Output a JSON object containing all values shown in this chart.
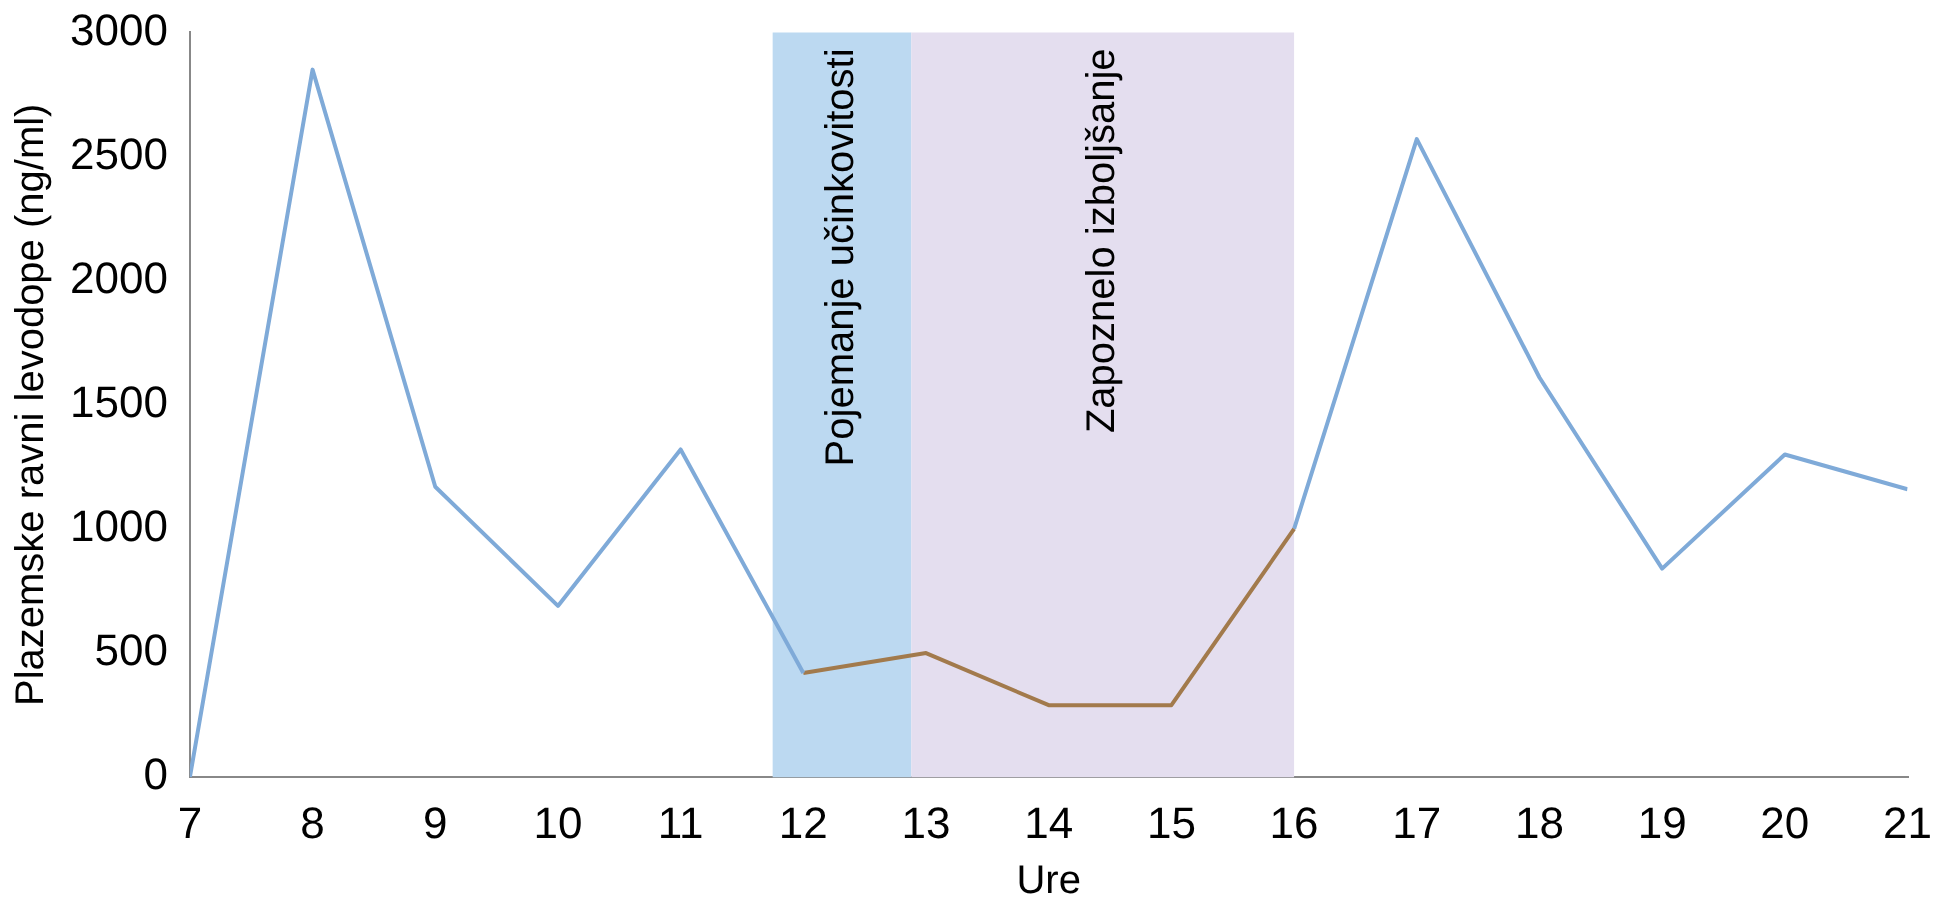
{
  "chart_data": {
    "type": "line",
    "xlabel": "Ure",
    "ylabel": "Plazemske ravni levodope (ng/ml)",
    "xlim": [
      7,
      21
    ],
    "xticks": [
      7,
      8,
      9,
      10,
      11,
      12,
      13,
      14,
      15,
      16,
      17,
      18,
      19,
      20,
      21
    ],
    "ylim": [
      0,
      3000
    ],
    "yticks": [
      0,
      500,
      1000,
      1500,
      2000,
      2500,
      3000
    ],
    "grid": false,
    "legend": false,
    "marker": "none",
    "line_style": "solid",
    "bands": [
      {
        "axis": "x",
        "from": 11.75,
        "to": 12.88,
        "label": "Pojemanje učinkovitosti",
        "color": "#bcd9f1"
      },
      {
        "axis": "x",
        "from": 12.88,
        "to": 16,
        "label": "Zapoznelo izboljšanje",
        "color": "#e4deef"
      }
    ],
    "series": [
      {
        "color": "#7faad8",
        "x": [
          7,
          8,
          9,
          10,
          11,
          12
        ],
        "values": [
          0,
          2850,
          1170,
          690,
          1320,
          420
        ]
      },
      {
        "color": "#a27a4c",
        "x": [
          12,
          13,
          14,
          15,
          16
        ],
        "values": [
          420,
          500,
          290,
          290,
          1000
        ]
      },
      {
        "color": "#7faad8",
        "x": [
          16,
          17,
          18,
          19,
          20,
          21
        ],
        "values": [
          1000,
          2570,
          1610,
          840,
          1300,
          1160
        ]
      }
    ]
  }
}
